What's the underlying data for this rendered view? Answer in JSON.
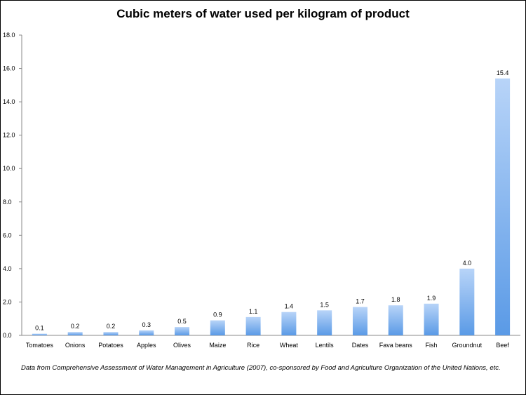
{
  "chart_data": {
    "type": "bar",
    "title": "Cubic meters of water used per kilogram of product",
    "categories": [
      "Tomatoes",
      "Onions",
      "Potatoes",
      "Apples",
      "Olives",
      "Maize",
      "Rice",
      "Wheat",
      "Lentils",
      "Dates",
      "Fava beans",
      "Fish",
      "Groundnut",
      "Beef"
    ],
    "values": [
      0.1,
      0.2,
      0.2,
      0.3,
      0.5,
      0.9,
      1.1,
      1.4,
      1.5,
      1.7,
      1.8,
      1.9,
      4.0,
      15.4
    ],
    "data_labels": [
      "0.1",
      "0.2",
      "0.2",
      "0.3",
      "0.5",
      "0.9",
      "1.1",
      "1.4",
      "1.5",
      "1.7",
      "1.8",
      "1.9",
      "4.0",
      "15.4"
    ],
    "yticks": [
      0,
      2,
      4,
      6,
      8,
      10,
      12,
      14,
      16,
      18
    ],
    "ytick_labels": [
      "0.0",
      "2.0",
      "4.0",
      "6.0",
      "8.0",
      "10.0",
      "12.0",
      "14.0",
      "16.0",
      "18.0"
    ],
    "ylim": [
      0,
      18
    ],
    "grid": false,
    "legend": "none",
    "xlabel": "",
    "ylabel": "",
    "bar_color_top": "#b8d4f8",
    "bar_color_bottom": "#5a9ae6"
  },
  "footnote": "Data from Comprehensive Assessment of Water Management in Agriculture (2007), co-sponsored by Food and Agriculture Organization of the United Nations, etc."
}
